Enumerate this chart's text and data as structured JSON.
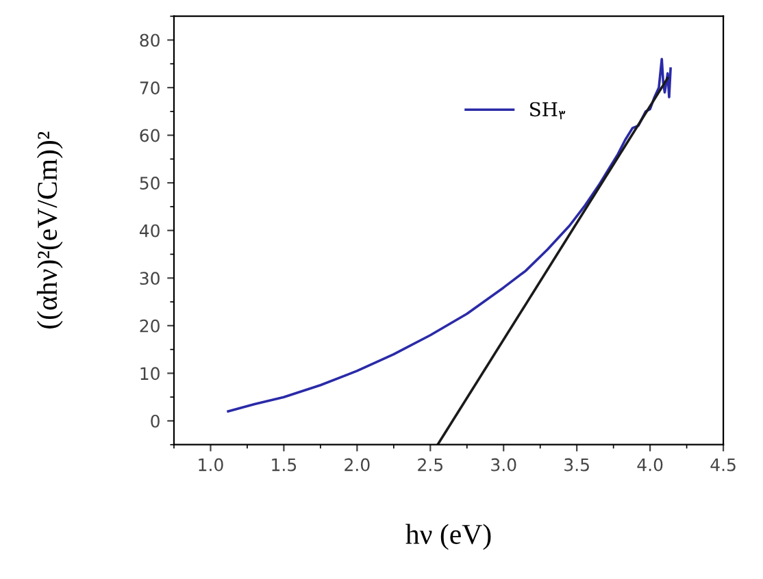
{
  "chart_data": {
    "type": "line",
    "xlabel": "hν (eV)",
    "ylabel": "((αhν)²(eV/Cm))²",
    "xlim": [
      0.75,
      4.5
    ],
    "ylim": [
      -5,
      85
    ],
    "xticks": [
      {
        "value": 1,
        "label": "1.0"
      },
      1.5,
      {
        "value": 2,
        "label": "2.0"
      },
      2.5,
      {
        "value": 3,
        "label": "3.0"
      },
      3.5,
      {
        "value": 4,
        "label": "4.0"
      },
      4.5
    ],
    "yticks": [
      0,
      10,
      20,
      30,
      40,
      50,
      60,
      70,
      80
    ],
    "grid": false,
    "legend": "top",
    "marker": "none",
    "line_style": "solid",
    "series": [
      {
        "name": "SH$_{۳}$",
        "color": "#2a2aa8",
        "x": [
          1.12,
          1.3,
          1.5,
          1.75,
          2.0,
          2.25,
          2.5,
          2.75,
          3.0,
          3.15,
          3.3,
          3.45,
          3.55,
          3.65,
          3.72,
          3.78,
          3.83,
          3.88,
          3.92,
          3.97,
          4.0,
          4.03,
          4.06,
          4.08,
          4.09,
          4.1,
          4.12,
          4.13,
          4.14
        ],
        "values": [
          2,
          3.5,
          5,
          7.5,
          10.5,
          14,
          18,
          22.5,
          28,
          31.5,
          36,
          41,
          45,
          49.5,
          53,
          56,
          59,
          61.5,
          62,
          65,
          65.5,
          68,
          70,
          76,
          71,
          69,
          73,
          68,
          74
        ]
      },
      {
        "type": "line",
        "color": "#1a1a1a",
        "x": [
          2.55,
          4.12
        ],
        "values": [
          -5,
          72
        ]
      }
    ]
  }
}
